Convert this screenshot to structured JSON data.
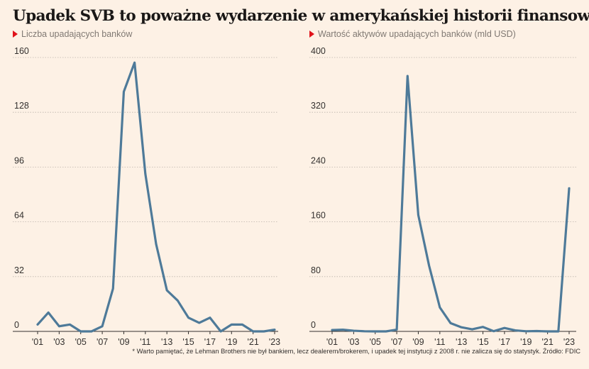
{
  "title": "Upadek SVB to poważne wydarzenie w amerykańskiej historii finansowej",
  "footnote": "* Warto pamiętać, że Lehman Brothers nie był bankiem, lecz dealerem/brokerem, i upadek tej instytucji z 2008 r. nie zalicza się do statystyk. Źródło: FDIC",
  "colors": {
    "line": "#4e7a99",
    "marker": "#e0121a",
    "background": "#fdf1e5"
  },
  "chart_data": [
    {
      "type": "line",
      "title": "Liczba upadających banków",
      "xlabel": "",
      "ylabel": "",
      "x": [
        2001,
        2002,
        2003,
        2004,
        2005,
        2006,
        2007,
        2008,
        2009,
        2010,
        2011,
        2012,
        2013,
        2014,
        2015,
        2016,
        2017,
        2018,
        2019,
        2020,
        2021,
        2022,
        2023
      ],
      "x_tick_values": [
        2001,
        2003,
        2005,
        2007,
        2009,
        2011,
        2013,
        2015,
        2017,
        2019,
        2021,
        2023
      ],
      "x_tick_labels": [
        "'01",
        "'03",
        "'05",
        "'07",
        "'09",
        "'11",
        "'13",
        "'15",
        "'17",
        "'19",
        "'21",
        "'23"
      ],
      "y_ticks": [
        0,
        32,
        64,
        96,
        128,
        160
      ],
      "ylim": [
        0,
        160
      ],
      "grid": true,
      "series": [
        {
          "values": [
            4,
            11,
            3,
            4,
            0,
            0,
            3,
            25,
            140,
            157,
            92,
            51,
            24,
            18,
            8,
            5,
            8,
            0,
            4,
            4,
            0,
            0,
            1
          ]
        }
      ]
    },
    {
      "type": "line",
      "title": "Wartość aktywów upadających banków (mld USD)",
      "xlabel": "",
      "ylabel": "",
      "x": [
        2001,
        2002,
        2003,
        2004,
        2005,
        2006,
        2007,
        2008,
        2009,
        2010,
        2011,
        2012,
        2013,
        2014,
        2015,
        2016,
        2017,
        2018,
        2019,
        2020,
        2021,
        2022,
        2023
      ],
      "x_tick_values": [
        2001,
        2003,
        2005,
        2007,
        2009,
        2011,
        2013,
        2015,
        2017,
        2019,
        2021,
        2023
      ],
      "x_tick_labels": [
        "'01",
        "'03",
        "'05",
        "'07",
        "'09",
        "'11",
        "'13",
        "'15",
        "'17",
        "'19",
        "'21",
        "'23"
      ],
      "y_ticks": [
        0,
        80,
        160,
        240,
        320,
        400
      ],
      "ylim": [
        0,
        400
      ],
      "grid": true,
      "series": [
        {
          "values": [
            2,
            2.5,
            1,
            0.2,
            0,
            0,
            2.5,
            373,
            170,
            96,
            35,
            12,
            6,
            3,
            6.5,
            0.3,
            5,
            1.5,
            0.2,
            0.5,
            0,
            0,
            209
          ]
        }
      ]
    }
  ]
}
